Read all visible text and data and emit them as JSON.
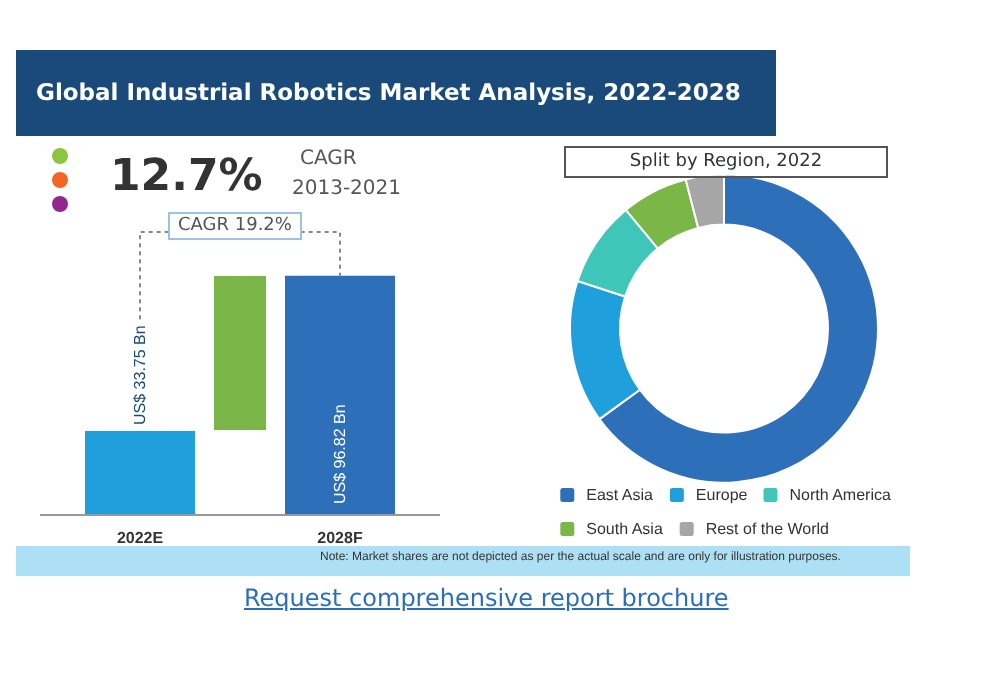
{
  "chart_data": [
    {
      "type": "bar",
      "title": "Global Industrial Robotics Market Analysis, 2022-2028",
      "categories": [
        "2022E",
        "2028F"
      ],
      "values": [
        33.75,
        96.82
      ],
      "colors": [
        "#1fa0dc",
        "#2e6fba"
      ],
      "value_labels": [
        "US$ 33.75 Bn",
        "US$ 96.82 Bn"
      ],
      "annotations": [
        "12.7%",
        "CAGR",
        "2013-2021",
        "CAGR 19.2%"
      ]
    },
    {
      "type": "donut",
      "title": "Split by Region, 2022",
      "categories": [
        "East Asia",
        "Europe",
        "North America",
        "South Asia",
        "Rest of the World"
      ],
      "values": [
        65,
        15,
        9,
        7,
        4
      ],
      "colors": [
        "#2e6fba",
        "#1fa0dc",
        "#3ec7b9",
        "#7ab648",
        "#a6a6a6"
      ],
      "legend": "bottom",
      "annotations": [
        "Note: Market shares are not depicted as per the actual scale and are only for illustration purposes.",
        "Request comprehensive report brochure"
      ]
    }
  ]
}
